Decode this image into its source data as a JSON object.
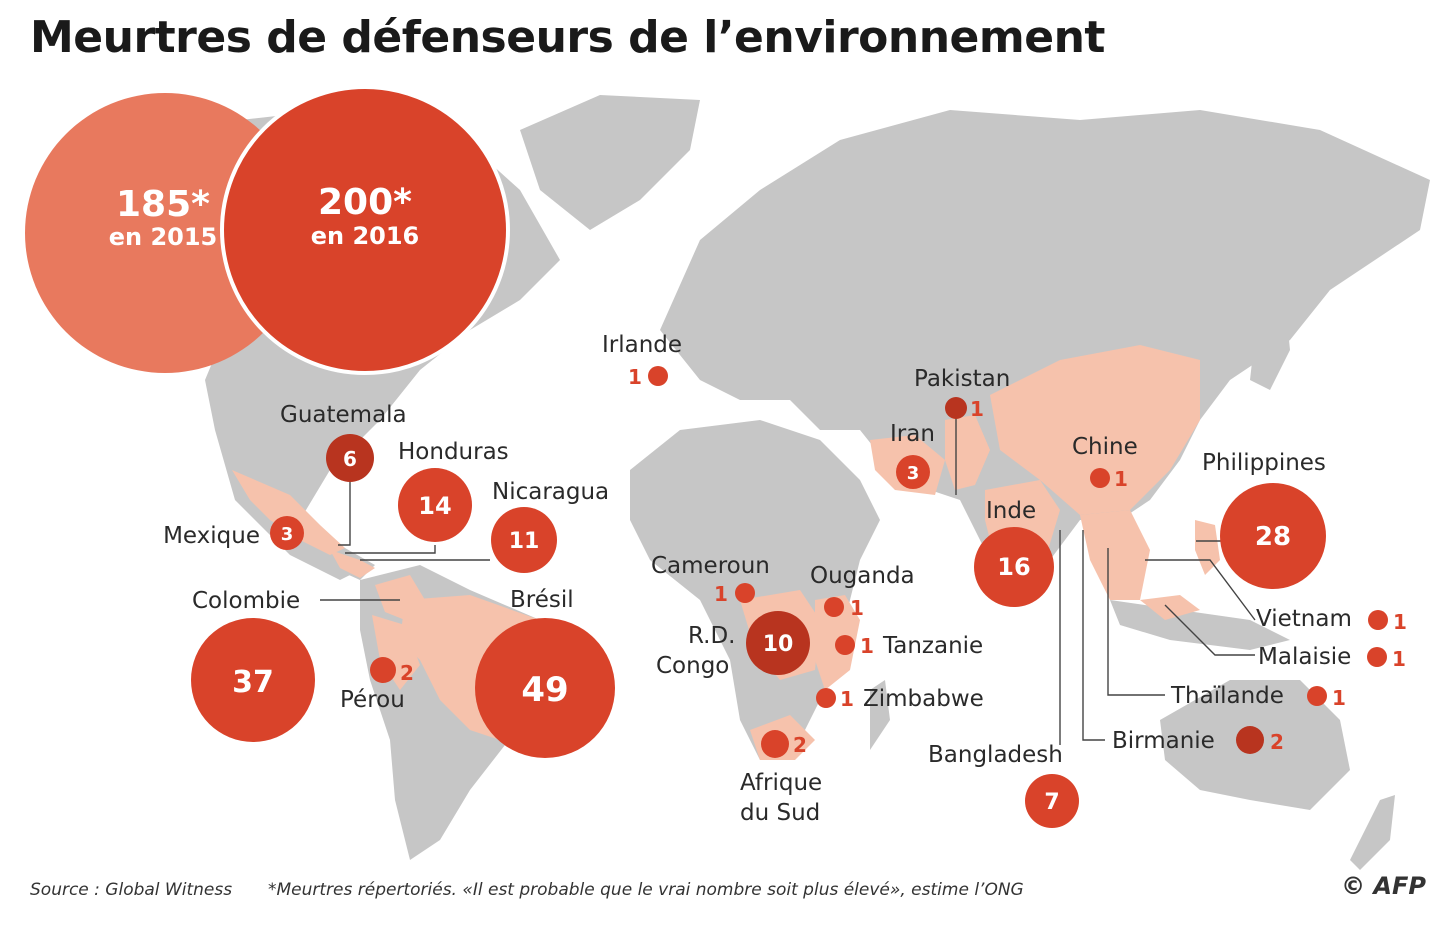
{
  "title": "Meurtres de défenseurs de l’environnement",
  "totals": [
    {
      "value": "185*",
      "year": "en 2015"
    },
    {
      "value": "200*",
      "year": "en 2016"
    }
  ],
  "countries": [
    {
      "name": "Guatemala",
      "count": "6"
    },
    {
      "name": "Honduras",
      "count": "14"
    },
    {
      "name": "Nicaragua",
      "count": "11"
    },
    {
      "name": "Mexique",
      "count": "3"
    },
    {
      "name": "Colombie",
      "count": "37"
    },
    {
      "name": "Brésil",
      "count": "49"
    },
    {
      "name": "Pérou",
      "count": "2"
    },
    {
      "name": "Irlande",
      "count": "1"
    },
    {
      "name": "Cameroun",
      "count": "1"
    },
    {
      "name": "R.D.",
      "name2": "Congo",
      "count": "10"
    },
    {
      "name": "Ouganda",
      "count": "1"
    },
    {
      "name": "Tanzanie",
      "count": "1"
    },
    {
      "name": "Zimbabwe",
      "count": "1"
    },
    {
      "name": "Afrique",
      "name2": "du Sud",
      "count": "2"
    },
    {
      "name": "Pakistan",
      "count": "1"
    },
    {
      "name": "Iran",
      "count": "3"
    },
    {
      "name": "Chine",
      "count": "1"
    },
    {
      "name": "Inde",
      "count": "16"
    },
    {
      "name": "Bangladesh",
      "count": "7"
    },
    {
      "name": "Philippines",
      "count": "28"
    },
    {
      "name": "Vietnam",
      "count": "1"
    },
    {
      "name": "Malaisie",
      "count": "1"
    },
    {
      "name": "Thaïlande",
      "count": "1"
    },
    {
      "name": "Birmanie",
      "count": "2"
    }
  ],
  "footer": {
    "source": "Source : Global Witness",
    "note": "*Meurtres répertoriés. «Il est probable que le vrai nombre soit plus élevé», estime l’ONG",
    "credit": "© AFP"
  },
  "colors": {
    "land": "#c6c6c6",
    "highlight": "#f6c2ac",
    "circle": "#d9432a",
    "circle_dark": "#b8341f",
    "circle_2015": "#e8795e"
  }
}
